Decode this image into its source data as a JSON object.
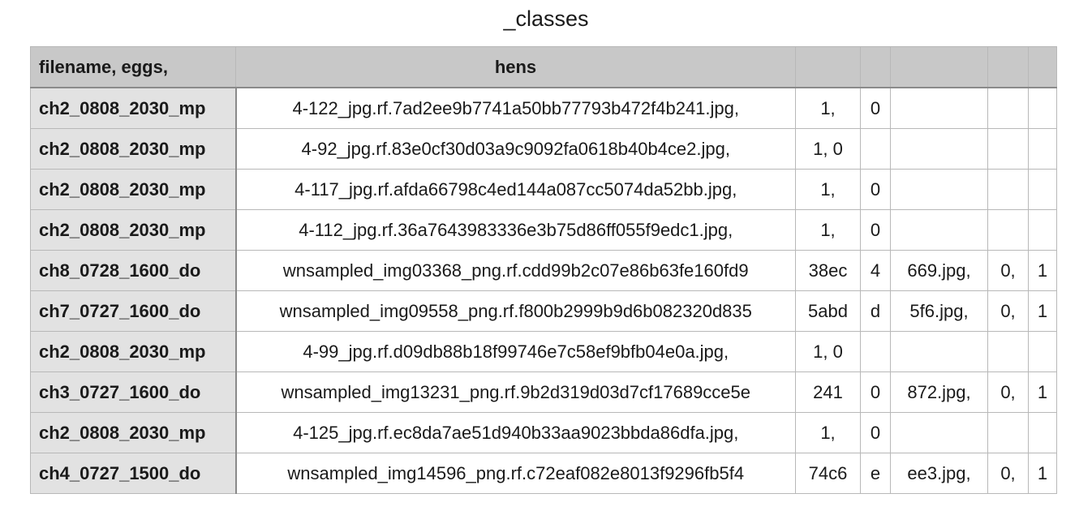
{
  "title": "_classes",
  "columns": [
    "filename, eggs,",
    "hens",
    "",
    "",
    "",
    "",
    ""
  ],
  "rows": [
    [
      "ch2_0808_2030_mp",
      "4-122_jpg.rf.7ad2ee9b7741a50bb77793b472f4b241.jpg,",
      "1,",
      "0",
      "",
      "",
      ""
    ],
    [
      "ch2_0808_2030_mp",
      "4-92_jpg.rf.83e0cf30d03a9c9092fa0618b40b4ce2.jpg,",
      "1, 0",
      "",
      "",
      "",
      ""
    ],
    [
      "ch2_0808_2030_mp",
      "4-117_jpg.rf.afda66798c4ed144a087cc5074da52bb.jpg,",
      "1,",
      "0",
      "",
      "",
      ""
    ],
    [
      "ch2_0808_2030_mp",
      "4-112_jpg.rf.36a7643983336e3b75d86ff055f9edc1.jpg,",
      "1,",
      "0",
      "",
      "",
      ""
    ],
    [
      "ch8_0728_1600_do",
      "wnsampled_img03368_png.rf.cdd99b2c07e86b63fe160fd9",
      "38ec",
      "4",
      "669.jpg,",
      "0,",
      "1"
    ],
    [
      "ch7_0727_1600_do",
      "wnsampled_img09558_png.rf.f800b2999b9d6b082320d835",
      "5abd",
      "d",
      "5f6.jpg,",
      "0,",
      "1"
    ],
    [
      "ch2_0808_2030_mp",
      "4-99_jpg.rf.d09db88b18f99746e7c58ef9bfb04e0a.jpg,",
      "1, 0",
      "",
      "",
      "",
      ""
    ],
    [
      "ch3_0727_1600_do",
      "wnsampled_img13231_png.rf.9b2d319d03d7cf17689cce5e",
      "241",
      "0",
      "872.jpg,",
      "0,",
      "1"
    ],
    [
      "ch2_0808_2030_mp",
      "4-125_jpg.rf.ec8da7ae51d940b33aa9023bbda86dfa.jpg,",
      "1,",
      "0",
      "",
      "",
      ""
    ],
    [
      "ch4_0727_1500_do",
      "wnsampled_img14596_png.rf.c72eaf082e8013f9296fb5f4",
      "74c6",
      "e",
      "ee3.jpg,",
      "0,",
      "1"
    ]
  ]
}
